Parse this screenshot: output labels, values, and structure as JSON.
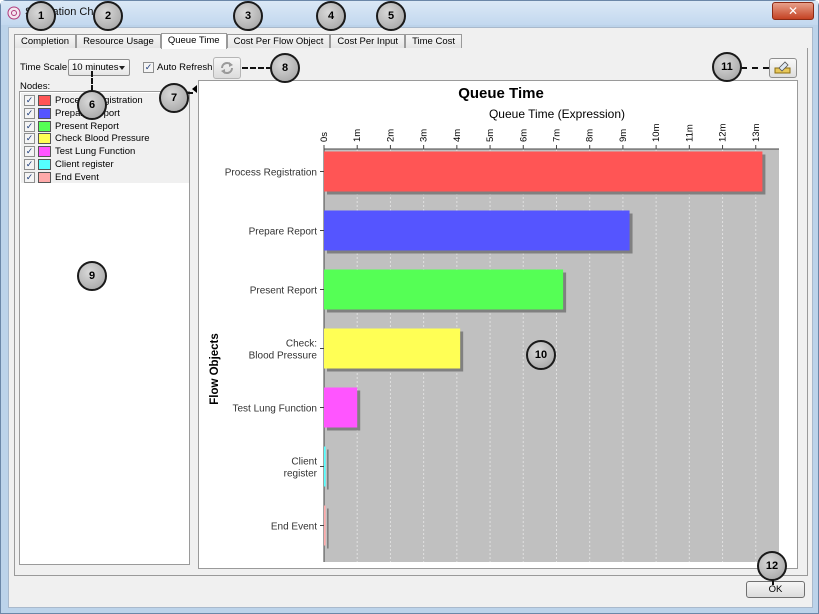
{
  "window": {
    "title": "Simulation Chart"
  },
  "tabs": [
    {
      "label": "Completion"
    },
    {
      "label": "Resource Usage"
    },
    {
      "label": "Queue Time",
      "active": true
    },
    {
      "label": "Cost Per Flow Object"
    },
    {
      "label": "Cost Per Input"
    },
    {
      "label": "Time Cost"
    }
  ],
  "controls": {
    "time_scale_label": "Time Scale:",
    "time_scale_value": "10 minutes",
    "auto_refresh_label": "Auto Refresh",
    "auto_refresh_checked": true,
    "nodes_label": "Nodes:"
  },
  "nodes": [
    {
      "label": "Process Registration",
      "color": "#ff5555",
      "checked": true
    },
    {
      "label": "Prepare Report",
      "color": "#5555ff",
      "checked": true
    },
    {
      "label": "Present Report",
      "color": "#55ff55",
      "checked": true
    },
    {
      "label": "Check Blood Pressure",
      "color": "#ffff55",
      "checked": true
    },
    {
      "label": "Test Lung Function",
      "color": "#ff55ff",
      "checked": true
    },
    {
      "label": "Client register",
      "color": "#55ffff",
      "checked": true
    },
    {
      "label": "End Event",
      "color": "#ffaaaa",
      "checked": true
    }
  ],
  "buttons": {
    "ok_label": "OK"
  },
  "callouts": [
    "1",
    "2",
    "3",
    "4",
    "5",
    "6",
    "7",
    "8",
    "9",
    "10",
    "11",
    "12"
  ],
  "chart_data": {
    "type": "bar",
    "orientation": "horizontal",
    "title": "Queue Time",
    "xlabel": "Queue Time (Expression)",
    "ylabel": "Flow Objects",
    "x_ticks": [
      "0s",
      "1m",
      "2m",
      "3m",
      "4m",
      "5m",
      "6m",
      "7m",
      "8m",
      "9m",
      "10m",
      "11m",
      "12m",
      "13m"
    ],
    "xlim_minutes": [
      0,
      13.7
    ],
    "grid": true,
    "categories": [
      "Process Registration",
      "Prepare Report",
      "Present Report",
      "Check: Blood Pressure",
      "Test Lung Function",
      "Client register",
      "End Event"
    ],
    "category_lines": [
      [
        "Process Registration"
      ],
      [
        "Prepare Report"
      ],
      [
        "Present Report"
      ],
      [
        "Check:",
        "Blood Pressure"
      ],
      [
        "Test Lung Function"
      ],
      [
        "Client",
        "register"
      ],
      [
        "End Event"
      ]
    ],
    "values_minutes": [
      13.2,
      9.2,
      7.2,
      4.1,
      1.0,
      0.05,
      0.05
    ],
    "colors": [
      "#ff5555",
      "#5555ff",
      "#55ff55",
      "#ffff55",
      "#ff55ff",
      "#55ffff",
      "#ffaaaa"
    ]
  }
}
